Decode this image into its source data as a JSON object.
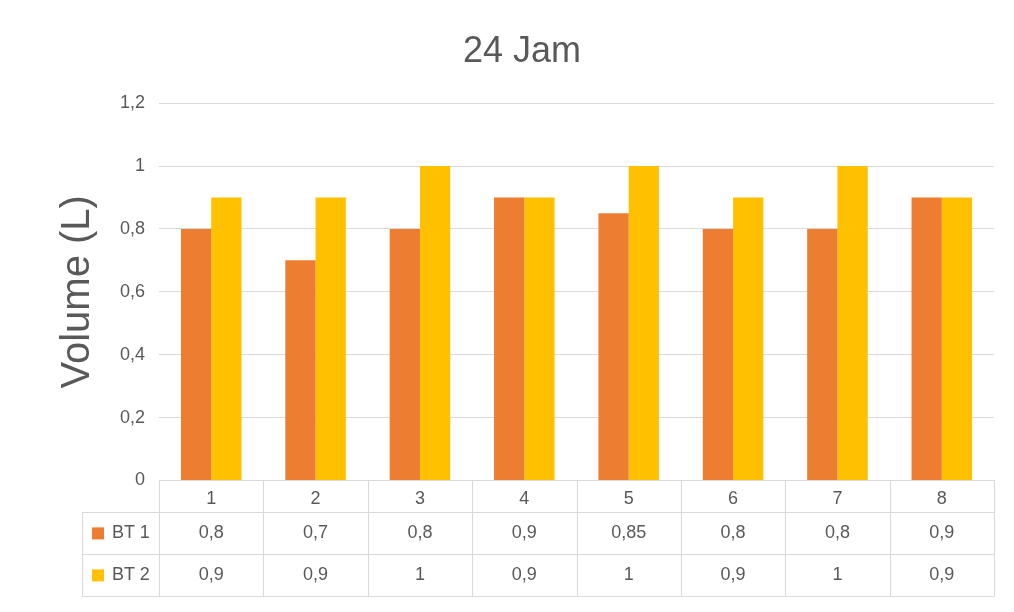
{
  "chart_data": {
    "type": "bar",
    "title": "24 Jam",
    "ylabel": "Volume (L)",
    "categories": [
      "1",
      "2",
      "3",
      "4",
      "5",
      "6",
      "7",
      "8"
    ],
    "series": [
      {
        "name": "BT 1",
        "color": "#ed7d31",
        "values": [
          0.8,
          0.7,
          0.8,
          0.9,
          0.85,
          0.8,
          0.8,
          0.9
        ],
        "value_labels": [
          "0,8",
          "0,7",
          "0,8",
          "0,9",
          "0,85",
          "0,8",
          "0,8",
          "0,9"
        ]
      },
      {
        "name": "BT 2",
        "color": "#ffc000",
        "values": [
          0.9,
          0.9,
          1,
          0.9,
          1,
          0.9,
          1,
          0.9
        ],
        "value_labels": [
          "0,9",
          "0,9",
          "1",
          "0,9",
          "1",
          "0,9",
          "1",
          "0,9"
        ]
      }
    ],
    "ylim": [
      0,
      1.2
    ],
    "yticks": [
      0,
      {
        "value": 0.2,
        "label": "0,2"
      },
      {
        "value": 0.4,
        "label": "0,4"
      },
      {
        "value": 0.6,
        "label": "0,6"
      },
      {
        "value": 0.8,
        "label": "0,8"
      },
      1,
      {
        "value": 1.2,
        "label": "1,2"
      }
    ],
    "grid": "y",
    "legend": "bottom"
  }
}
